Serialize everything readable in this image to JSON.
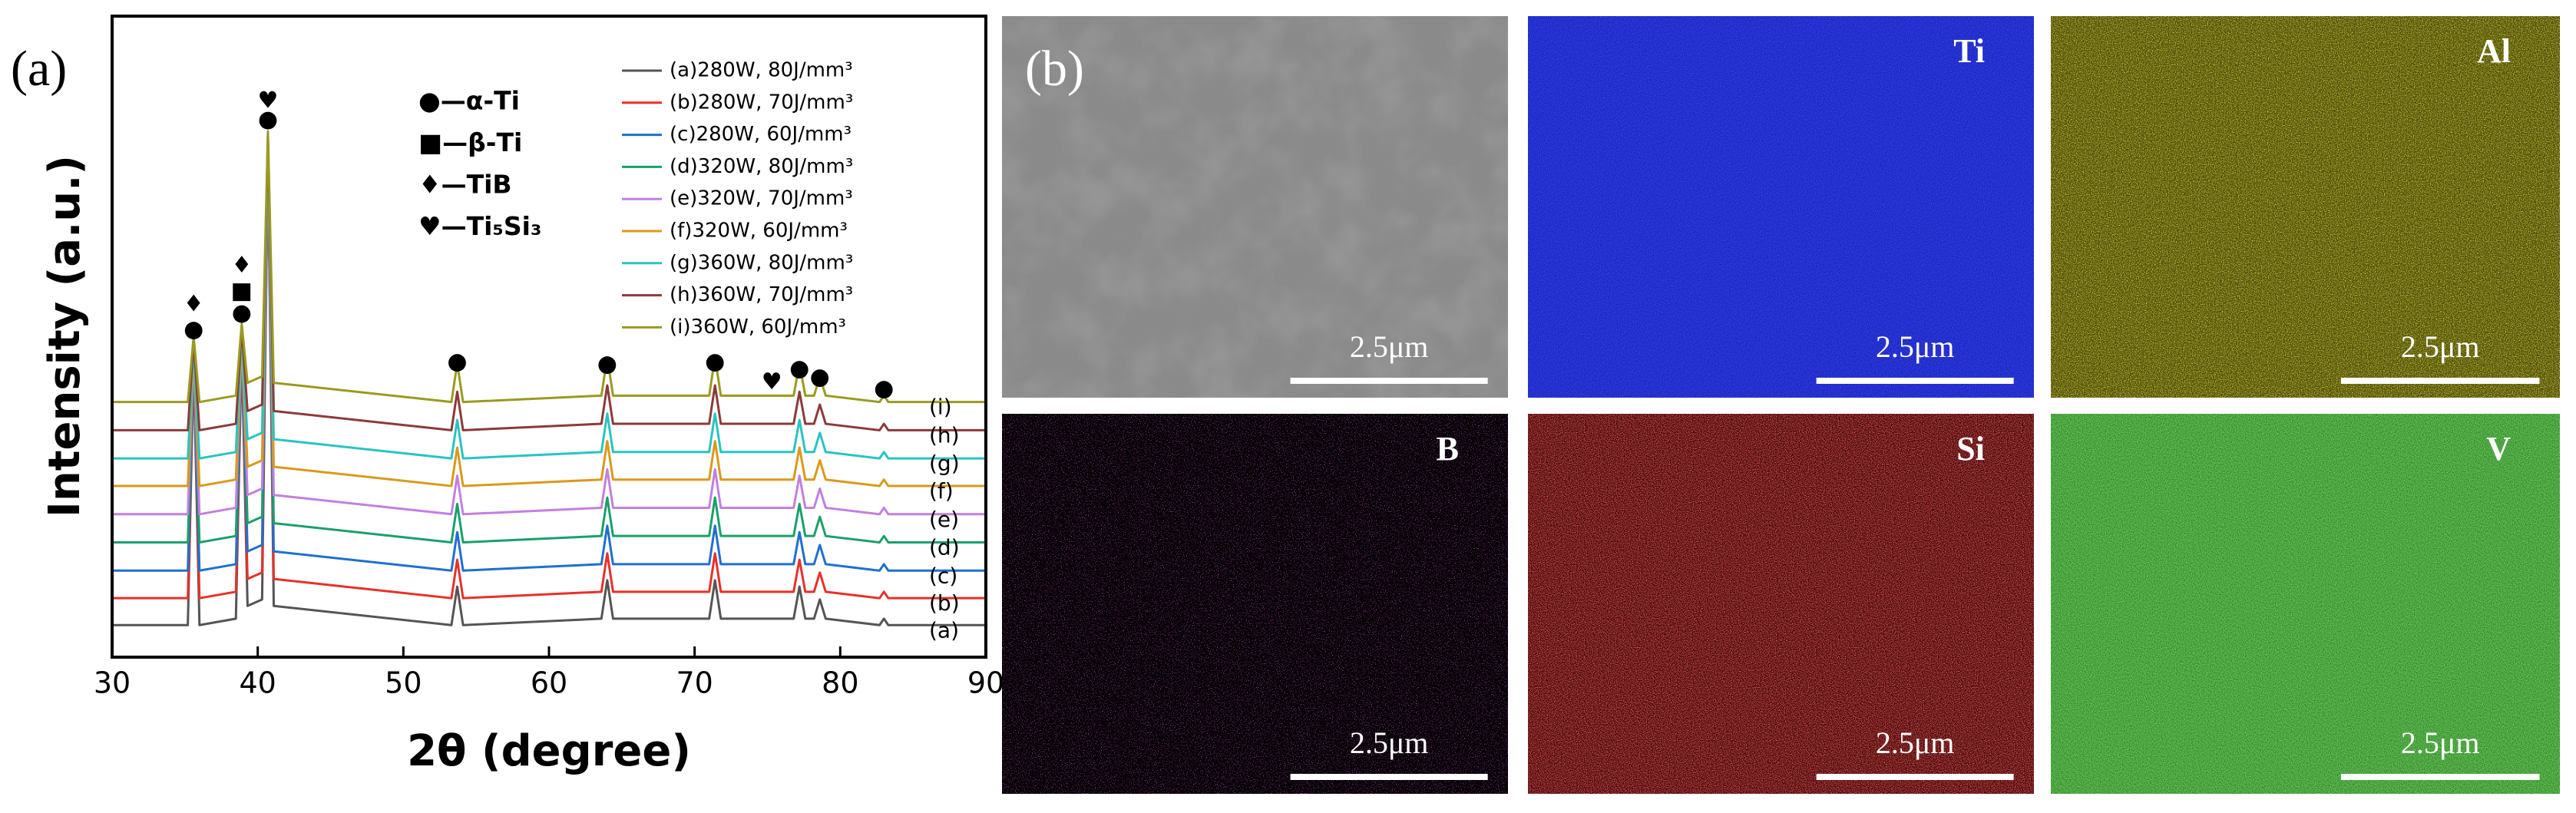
{
  "chart_data": {
    "type": "line",
    "panel_label": "(a)",
    "xlabel": "2θ (degree)",
    "ylabel": "Intensity (a.u.)",
    "x": [
      30,
      35.2,
      35.6,
      36.0,
      38.5,
      38.9,
      39.3,
      40.3,
      40.7,
      41.1,
      53.3,
      53.7,
      54.1,
      63.6,
      64.0,
      64.4,
      71.0,
      71.4,
      71.8,
      76.8,
      77.2,
      77.6,
      78.2,
      78.6,
      79.0,
      82.7,
      83.0,
      83.3,
      90
    ],
    "xlim": [
      30,
      90
    ],
    "xticks": [
      30,
      40,
      50,
      60,
      70,
      80,
      90
    ],
    "ylim": [
      0,
      100
    ],
    "series": [
      {
        "name": "(a)280W, 80J/mm³",
        "label": "(a)",
        "color": "#555555",
        "values": [
          5,
          5,
          46,
          5,
          6,
          48,
          8,
          9,
          78,
          8,
          5,
          11,
          5,
          6,
          12,
          6,
          6,
          12,
          6,
          6,
          11,
          6,
          6,
          9,
          6,
          5,
          6,
          5,
          5
        ]
      },
      {
        "name": "(b)280W, 70J/mm³",
        "label": "(b)",
        "color": "#e8302a",
        "values": [
          9.2,
          9.2,
          46.5,
          9.2,
          10.2,
          48.5,
          12.2,
          13.2,
          78.5,
          12.2,
          9.2,
          15.2,
          9.2,
          10.2,
          16.2,
          10.2,
          10.2,
          16.2,
          10.2,
          10.2,
          15.2,
          10.2,
          10.2,
          13.2,
          10.2,
          9.2,
          10.2,
          9.2,
          9.2
        ]
      },
      {
        "name": "(c)280W, 60J/mm³",
        "label": "(c)",
        "color": "#1f6fd1",
        "values": [
          13.5,
          13.5,
          47,
          13.5,
          14.5,
          49,
          16.5,
          17.5,
          79,
          16.5,
          13.5,
          19.5,
          13.5,
          14.5,
          20.5,
          14.5,
          14.5,
          20.5,
          14.5,
          14.5,
          19.5,
          14.5,
          14.5,
          17.5,
          14.5,
          13.5,
          14.5,
          13.5,
          13.5
        ]
      },
      {
        "name": "(d)320W, 80J/mm³",
        "label": "(d)",
        "color": "#1aa06a",
        "values": [
          17.9,
          17.9,
          47.5,
          17.9,
          18.9,
          49.5,
          20.9,
          21.9,
          79.5,
          20.9,
          17.9,
          23.9,
          17.9,
          18.9,
          24.9,
          18.9,
          18.9,
          24.9,
          18.9,
          18.9,
          23.9,
          18.9,
          18.9,
          21.9,
          18.9,
          17.9,
          18.9,
          17.9,
          17.9
        ]
      },
      {
        "name": "(e)320W, 70J/mm³",
        "label": "(e)",
        "color": "#c37fe0",
        "values": [
          22.3,
          22.3,
          48,
          22.3,
          23.3,
          50,
          25.3,
          26.3,
          80,
          25.3,
          22.3,
          28.3,
          22.3,
          23.3,
          29.3,
          23.3,
          23.3,
          29.3,
          23.3,
          23.3,
          28.3,
          23.3,
          23.3,
          26.3,
          23.3,
          22.3,
          23.3,
          22.3,
          22.3
        ]
      },
      {
        "name": "(f)320W, 60J/mm³",
        "label": "(f)",
        "color": "#d99a1a",
        "values": [
          26.7,
          26.7,
          48.5,
          26.7,
          27.7,
          50.5,
          29.7,
          30.7,
          80.5,
          29.7,
          26.7,
          32.7,
          26.7,
          27.7,
          33.7,
          27.7,
          27.7,
          33.7,
          27.7,
          27.7,
          32.7,
          27.7,
          27.7,
          30.7,
          27.7,
          26.7,
          27.7,
          26.7,
          26.7
        ]
      },
      {
        "name": "(g)360W, 80J/mm³",
        "label": "(g)",
        "color": "#2ac3c3",
        "values": [
          31,
          31,
          49,
          31,
          32,
          51,
          34,
          35,
          81,
          34,
          31,
          37,
          31,
          32,
          38,
          32,
          32,
          38,
          32,
          32,
          37,
          32,
          32,
          35,
          32,
          31,
          32,
          31,
          31
        ]
      },
      {
        "name": "(h)360W, 70J/mm³",
        "label": "(h)",
        "color": "#8b3a3a",
        "values": [
          35.4,
          35.4,
          49.5,
          35.4,
          36.4,
          51.5,
          38.4,
          39.4,
          81.5,
          38.4,
          35.4,
          41.4,
          35.4,
          36.4,
          42.4,
          36.4,
          36.4,
          42.4,
          36.4,
          36.4,
          41.4,
          36.4,
          36.4,
          39.4,
          36.4,
          35.4,
          36.4,
          35.4,
          35.4
        ]
      },
      {
        "name": "(i)360W, 60J/mm³",
        "label": "(i)",
        "color": "#9a9a20",
        "values": [
          39.8,
          39.8,
          50,
          39.8,
          40.8,
          52,
          42.8,
          43.8,
          82,
          42.8,
          39.8,
          45.8,
          39.8,
          40.8,
          46.8,
          40.8,
          40.8,
          46.8,
          40.8,
          40.8,
          45.8,
          40.8,
          40.8,
          43.8,
          40.8,
          39.8,
          40.8,
          39.8,
          39.8
        ]
      }
    ],
    "phase_legend": [
      "●—α-Ti",
      "■—β-Ti",
      "♦—TiB",
      "♥—Ti₅Si₃"
    ],
    "annotations": [
      {
        "text": "♦",
        "x": 35.6,
        "y": 55
      },
      {
        "text": "●",
        "x": 35.6,
        "y": 51
      },
      {
        "text": "♦",
        "x": 38.9,
        "y": 61
      },
      {
        "text": "■",
        "x": 38.9,
        "y": 57
      },
      {
        "text": "●",
        "x": 38.9,
        "y": 53.6
      },
      {
        "text": "♥",
        "x": 40.7,
        "y": 86.7
      },
      {
        "text": "●",
        "x": 40.7,
        "y": 83.8
      },
      {
        "text": "●",
        "x": 53.7,
        "y": 46
      },
      {
        "text": "●",
        "x": 64,
        "y": 45.6
      },
      {
        "text": "●",
        "x": 71.4,
        "y": 46
      },
      {
        "text": "♥",
        "x": 75.3,
        "y": 42.8
      },
      {
        "text": "●",
        "x": 77.2,
        "y": 44.9
      },
      {
        "text": "●",
        "x": 78.6,
        "y": 43.6
      },
      {
        "text": "●",
        "x": 83,
        "y": 41.8
      }
    ]
  },
  "micrographs": {
    "panel_label": "(b)",
    "panels": [
      {
        "scale_bar": "2.5μm"
      },
      {
        "element": "Ti",
        "scale_bar": "2.5μm"
      },
      {
        "element": "Al",
        "scale_bar": "2.5μm"
      },
      {
        "element": "B",
        "scale_bar": "2.5μm"
      },
      {
        "element": "Si",
        "scale_bar": "2.5μm"
      },
      {
        "element": "V",
        "scale_bar": "2.5μm"
      }
    ]
  }
}
